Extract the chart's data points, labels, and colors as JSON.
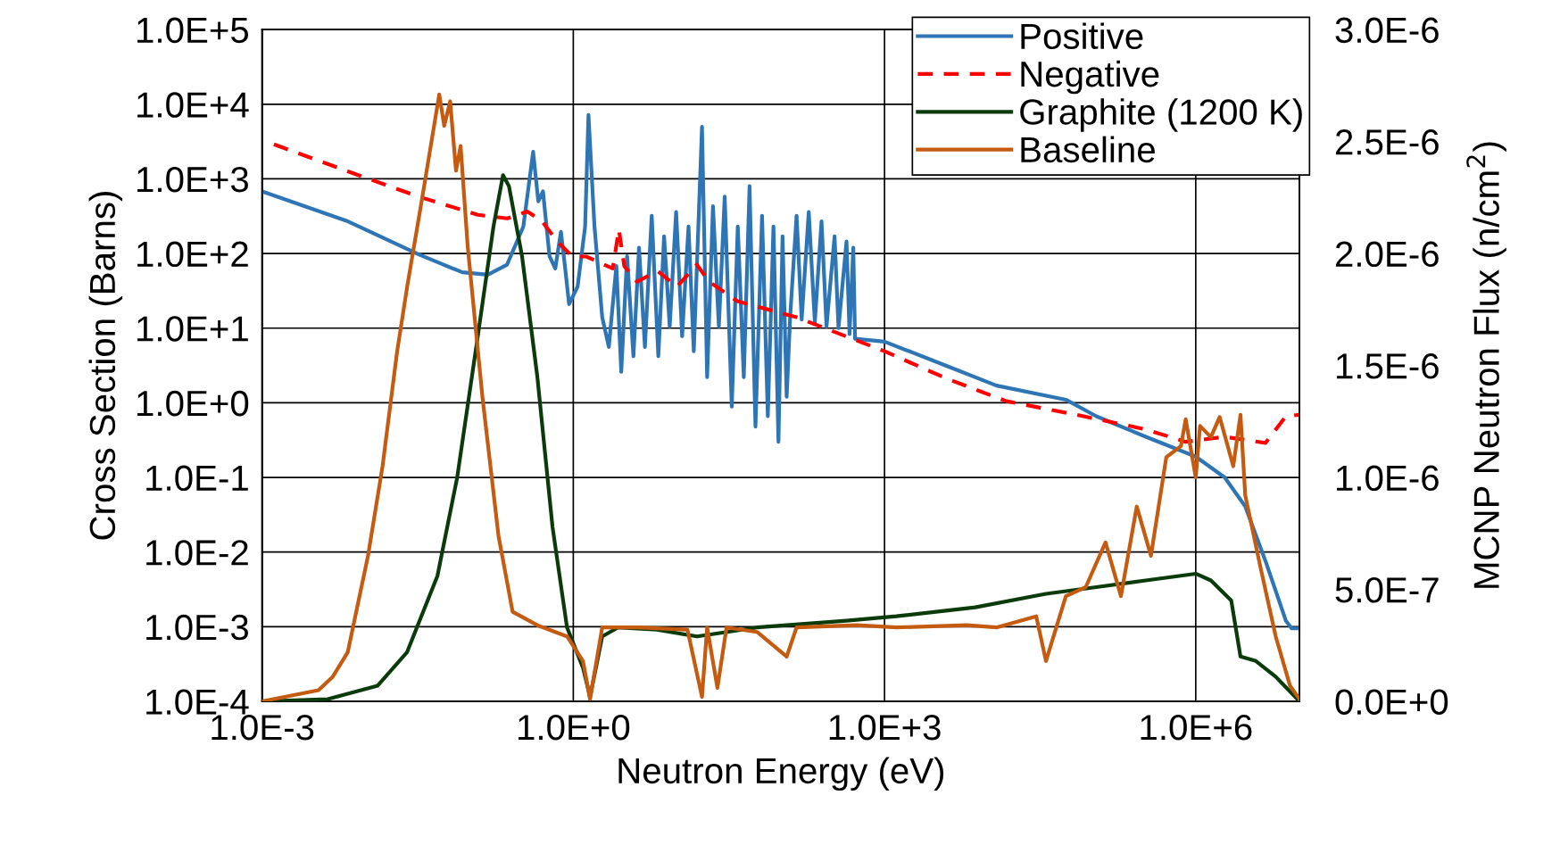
{
  "chart_data": {
    "type": "line",
    "xlabel": "Neutron Energy (eV)",
    "ylabel": "Cross Section (Barns)",
    "y2label": "MCNP Neutron Flux (n/cm$^{2}$)",
    "log": "xy",
    "grid": true,
    "legend": "top right",
    "xlim": [
      0.001,
      10000000
    ],
    "xticks": [
      {
        "value": 0.001,
        "label": "1.0E-3"
      },
      {
        "value": 1,
        "label": "1.0E+0"
      },
      {
        "value": 1000,
        "label": "1.0E+3"
      },
      {
        "value": 1000000,
        "label": "1.0E+6"
      }
    ],
    "ylim": [
      0.0001,
      100000
    ],
    "yticks": [
      {
        "value": 0.0001,
        "label": "1.0E-4"
      },
      {
        "value": 0.001,
        "label": "1.0E-3"
      },
      {
        "value": 0.01,
        "label": "1.0E-2"
      },
      {
        "value": 0.1,
        "label": "1.0E-1"
      },
      {
        "value": 1,
        "label": "1.0E+0"
      },
      {
        "value": 10,
        "label": "1.0E+1"
      },
      {
        "value": 100,
        "label": "1.0E+2"
      },
      {
        "value": 1000,
        "label": "1.0E+3"
      },
      {
        "value": 10000,
        "label": "1.0E+4"
      },
      {
        "value": 100000,
        "label": "1.0E+5"
      }
    ],
    "y2lim": [
      0,
      3e-06
    ],
    "y2ticks": [
      {
        "value": 0,
        "label": "0.0E+0"
      },
      {
        "value": 5e-07,
        "label": "5.0E-7"
      },
      {
        "value": 1e-06,
        "label": "1.0E-6"
      },
      {
        "value": 1.5e-06,
        "label": "1.5E-6"
      },
      {
        "value": 2e-06,
        "label": "2.0E-6"
      },
      {
        "value": 2.5e-06,
        "label": "2.5E-6"
      },
      {
        "value": 3e-06,
        "label": "3.0E-6"
      }
    ],
    "series": [
      {
        "name": "Positive",
        "color": "#2e75b6",
        "line_style": "solid",
        "x": [
          0.001,
          0.0067,
          0.032,
          0.085,
          0.15,
          0.23,
          0.33,
          0.41,
          0.46,
          0.51,
          0.59,
          0.67,
          0.76,
          0.83,
          0.91,
          1.1,
          1.3,
          1.4,
          1.6,
          1.9,
          2.2,
          2.6,
          2.9,
          3.3,
          3.8,
          4.3,
          4.9,
          5.7,
          6.6,
          7.5,
          8.5,
          9.8,
          11.2,
          12.9,
          14.5,
          17.4,
          19.5,
          22.2,
          25.3,
          28.8,
          33.7,
          38.5,
          44,
          50,
          57,
          66,
          75,
          85,
          95,
          104,
          114,
          123,
          142,
          159,
          186,
          213,
          247,
          276,
          330,
          360,
          430,
          460,
          500,
          520,
          1000,
          4000,
          12000,
          56000,
          110000,
          330000,
          1000000,
          1900000,
          3000000,
          4700000,
          7400000,
          8400000,
          10000000
        ],
        "values": [
          680,
          270,
          98,
          56,
          52,
          71,
          230,
          2300,
          500,
          680,
          92,
          63,
          195,
          68,
          21,
          36,
          230,
          7200,
          230,
          14,
          5.6,
          68,
          2.6,
          92,
          4.2,
          120,
          5.6,
          320,
          4.2,
          170,
          10.5,
          360,
          7.8,
          230,
          4.9,
          5000,
          2.2,
          430,
          10.5,
          580,
          0.89,
          230,
          2.2,
          800,
          0.48,
          320,
          0.66,
          230,
          0.3,
          170,
          1.2,
          14,
          320,
          13,
          360,
          12,
          270,
          10.5,
          170,
          10,
          145,
          8.3,
          120,
          7.2,
          6.6,
          3.1,
          1.7,
          1.1,
          0.66,
          0.35,
          0.19,
          0.1,
          0.041,
          0.0076,
          0.0012,
          0.00095,
          0.00095
        ]
      },
      {
        "name": "Negative",
        "color": "#ff0000",
        "line_style": "dashed",
        "x": [
          0.0013,
          0.0067,
          0.032,
          0.12,
          0.23,
          0.36,
          0.5,
          0.7,
          0.98,
          1.34,
          1.7,
          2.4,
          2.75,
          3.1,
          4.1,
          6.5,
          10,
          15.5,
          20.4,
          38,
          142,
          1000,
          4000,
          15000,
          71000,
          330000,
          800000,
          1900000,
          4700000,
          7400000,
          10000000
        ],
        "values": [
          2900,
          1260,
          580,
          330,
          295,
          365,
          270,
          145,
          91,
          91,
          78,
          63,
          210,
          68,
          42,
          58,
          36,
          71,
          42,
          23,
          14,
          4.9,
          2.1,
          1.05,
          0.69,
          0.44,
          0.3,
          0.35,
          0.29,
          0.66,
          0.69
        ]
      },
      {
        "name": "Graphite (1200 K)",
        "color": "#0b3a0b",
        "line_style": "solid",
        "axis": "y2",
        "x": [
          0.001,
          0.0043,
          0.013,
          0.025,
          0.049,
          0.076,
          0.12,
          0.17,
          0.21,
          0.24,
          0.32,
          0.45,
          0.63,
          0.87,
          1.24,
          1.45,
          1.9,
          2.7,
          6.4,
          15.6,
          59,
          430,
          1300,
          7500,
          36000,
          110000,
          330000,
          1000000,
          1400000,
          2200000,
          2700000,
          3800000,
          5900000,
          10000000
        ],
        "values": [
          0,
          1e-08,
          7e-08,
          2.2e-07,
          5.6e-07,
          1e-06,
          1.63e-06,
          2.12e-06,
          2.35e-06,
          2.3e-06,
          1.99e-06,
          1.45e-06,
          7.8e-07,
          3.3e-07,
          1.5e-07,
          2e-08,
          2.9e-07,
          3.3e-07,
          3.2e-07,
          2.9e-07,
          3.3e-07,
          3.6e-07,
          3.8e-07,
          4.2e-07,
          4.8e-07,
          5.1e-07,
          5.4e-07,
          5.7e-07,
          5.4e-07,
          4.5e-07,
          2e-07,
          1.8e-07,
          1.1e-07,
          0
        ]
      },
      {
        "name": "Baseline",
        "color": "#c55a11",
        "line_style": "solid",
        "axis": "y2",
        "x": [
          0.001,
          0.0035,
          0.0048,
          0.0067,
          0.0105,
          0.0145,
          0.02,
          0.025,
          0.035,
          0.047,
          0.051,
          0.057,
          0.065,
          0.074,
          0.082,
          0.096,
          0.133,
          0.19,
          0.26,
          0.45,
          0.87,
          1.24,
          1.45,
          1.9,
          4.1,
          12.6,
          17.4,
          19.5,
          24.5,
          30,
          59,
          114,
          142,
          540,
          1300,
          6200,
          12000,
          29000,
          36000,
          56000,
          87000,
          135000,
          190000,
          270000,
          370000,
          520000,
          720000,
          800000,
          1000000,
          1100000,
          1400000,
          1700000,
          2300000,
          2700000,
          3000000,
          4200000,
          5900000,
          8100000,
          10000000
        ],
        "values": [
          0,
          5e-08,
          1.1e-07,
          2.2e-07,
          6.5e-07,
          1.05e-06,
          1.56e-06,
          1.85e-06,
          2.25e-06,
          2.61e-06,
          2.71e-06,
          2.57e-06,
          2.68e-06,
          2.37e-06,
          2.48e-06,
          2.03e-06,
          1.36e-06,
          7.4e-07,
          4e-07,
          3.4e-07,
          2.9e-07,
          1.8e-07,
          1e-08,
          3.3e-07,
          3.3e-07,
          3.2e-07,
          2e-08,
          3.3e-07,
          6e-08,
          3.3e-07,
          3.1e-07,
          2e-07,
          3.3e-07,
          3.4e-07,
          3.3e-07,
          3.4e-07,
          3.3e-07,
          3.8e-07,
          1.8e-07,
          4.7e-07,
          5.1e-07,
          7.1e-07,
          4.7e-07,
          8.7e-07,
          6.5e-07,
          1.09e-06,
          1.14e-06,
          1.26e-06,
          1e-06,
          1.23e-06,
          1.18e-06,
          1.27e-06,
          1.05e-06,
          1.28e-06,
          9.2e-07,
          6e-07,
          2.9e-07,
          7e-08,
          1e-08
        ]
      }
    ]
  }
}
